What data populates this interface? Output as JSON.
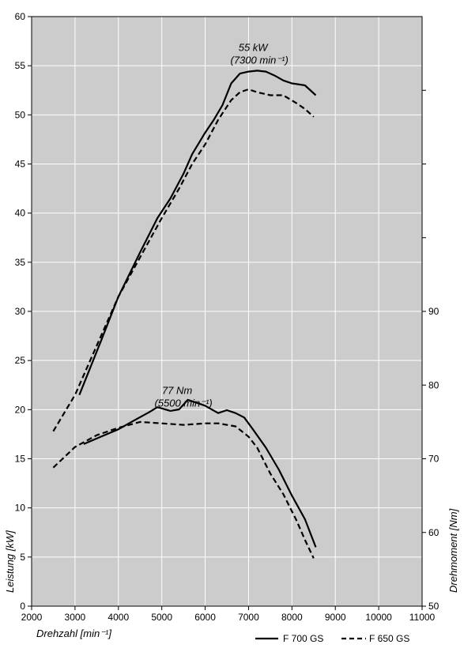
{
  "chart_data": {
    "type": "line",
    "xlabel": "Drehzahl [min⁻¹]",
    "ylabel_left": "Leistung [kW]",
    "ylabel_right": "Drehmoment [Nm]",
    "xlim": [
      2000,
      11000
    ],
    "xticks": [
      2000,
      3000,
      4000,
      5000,
      6000,
      7000,
      8000,
      9000,
      10000,
      11000
    ],
    "ylim_left": [
      0,
      60
    ],
    "yticks_left": [
      0,
      5,
      10,
      15,
      20,
      25,
      30,
      35,
      40,
      45,
      50,
      55,
      60
    ],
    "ylim_right": [
      50,
      130
    ],
    "yticks_right_labeled": [
      50,
      60,
      70,
      80,
      90
    ],
    "yticks_right_marks": [
      100,
      110,
      120
    ],
    "grid": true,
    "legend_position": "bottom-right",
    "annotations": [
      {
        "line1": "55 kW",
        "line2": "(7300 min⁻¹)",
        "x": 7250,
        "y": 56.5,
        "axis": "left"
      },
      {
        "line1": "77 Nm",
        "line2": "(5500 min⁻¹)",
        "x": 5500,
        "y": 78.8,
        "axis": "right"
      }
    ],
    "series": [
      {
        "name": "F 700 GS",
        "style": "solid",
        "axis": "left",
        "quantity": "power",
        "x": [
          3100,
          3600,
          4000,
          4500,
          4900,
          5200,
          5500,
          5700,
          6000,
          6200,
          6400,
          6600,
          6800,
          7000,
          7200,
          7400,
          7600,
          7800,
          8000,
          8300,
          8550
        ],
        "y": [
          21.5,
          27,
          31.5,
          36,
          39.5,
          41.5,
          44,
          46,
          48.2,
          49.5,
          51,
          53.2,
          54.2,
          54.4,
          54.5,
          54.4,
          54,
          53.5,
          53.2,
          53,
          52
        ]
      },
      {
        "name": "F 650 GS",
        "style": "dashed",
        "axis": "left",
        "quantity": "power",
        "x": [
          2500,
          3000,
          3500,
          4000,
          4500,
          5000,
          5400,
          5700,
          6000,
          6300,
          6600,
          6800,
          7000,
          7200,
          7500,
          7800,
          8100,
          8300,
          8500
        ],
        "y": [
          17.8,
          21.5,
          26.5,
          31.5,
          35.5,
          39.5,
          42.5,
          45,
          47,
          49.5,
          51.5,
          52.3,
          52.6,
          52.3,
          52,
          52,
          51.2,
          50.6,
          49.8
        ]
      },
      {
        "name": "F 700 GS",
        "style": "solid",
        "axis": "right",
        "quantity": "torque",
        "x": [
          3200,
          3600,
          4000,
          4300,
          4700,
          4900,
          5200,
          5400,
          5600,
          5800,
          6000,
          6300,
          6500,
          6700,
          6900,
          7100,
          7400,
          7700,
          8000,
          8300,
          8550
        ],
        "y": [
          72,
          73,
          74,
          75,
          76.3,
          77,
          76.5,
          76.7,
          78,
          77.6,
          77.2,
          76.2,
          76.6,
          76.2,
          75.6,
          74,
          71.5,
          68.5,
          65,
          61.8,
          58
        ]
      },
      {
        "name": "F 650 GS",
        "style": "dashed",
        "axis": "right",
        "quantity": "torque",
        "x": [
          2500,
          3000,
          3500,
          4000,
          4500,
          5000,
          5500,
          6000,
          6300,
          6700,
          7000,
          7200,
          7500,
          7800,
          8100,
          8300,
          8500
        ],
        "y": [
          68.8,
          71.6,
          73.2,
          74.2,
          75,
          74.8,
          74.6,
          74.8,
          74.8,
          74.4,
          73,
          71.5,
          68,
          65.2,
          61.7,
          59,
          56.5
        ]
      }
    ]
  }
}
